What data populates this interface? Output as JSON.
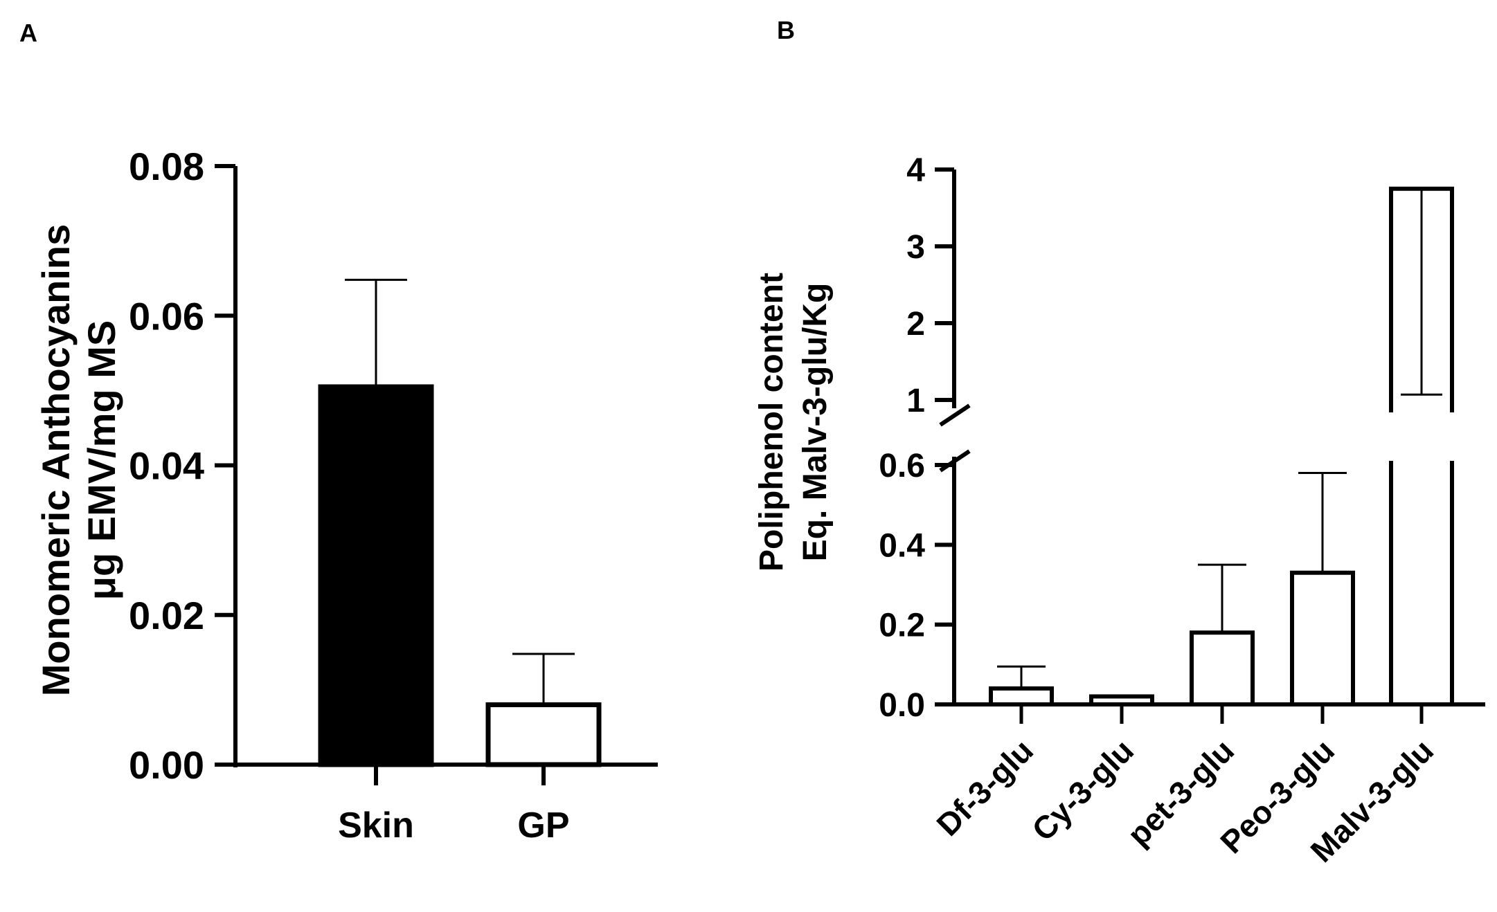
{
  "chart_data": [
    {
      "panel": "A",
      "type": "bar",
      "ylabel_lines": [
        "Monomeric Anthocyanins",
        "μg EMV/mg MS"
      ],
      "categories": [
        "Skin",
        "GP"
      ],
      "values": [
        0.0505,
        0.008
      ],
      "errors": [
        0.0143,
        0.0068
      ],
      "bar_fill": [
        "#000000",
        "#ffffff"
      ],
      "ylim": [
        0,
        0.08
      ],
      "yticks": [
        "0.00",
        "0.02",
        "0.04",
        "0.06",
        "0.08"
      ],
      "ytick_values": [
        0,
        0.02,
        0.04,
        0.06,
        0.08
      ],
      "grid": false,
      "legend": "none"
    },
    {
      "panel": "B",
      "type": "bar",
      "ylabel_lines": [
        "Poliphenol content",
        "Eq. Malv-3-glu/Kg"
      ],
      "categories": [
        "Df-3-glu",
        "Cy-3-glu",
        "pet-3-glu",
        "Peo-3-glu",
        "Malv-3-glu"
      ],
      "values": [
        0.04,
        0.02,
        0.18,
        0.33,
        3.75
      ],
      "errors": [
        0.055,
        0.0,
        0.17,
        0.25,
        2.68
      ],
      "bar_fill": [
        "#ffffff",
        "#ffffff",
        "#ffffff",
        "#ffffff",
        "#ffffff"
      ],
      "broken_axis": true,
      "lower_ylim": [
        0,
        0.6
      ],
      "upper_ylim": [
        1,
        4
      ],
      "lower_yticks": [
        "0.0",
        "0.2",
        "0.4",
        "0.6"
      ],
      "lower_ytick_values": [
        0,
        0.2,
        0.4,
        0.6
      ],
      "upper_yticks": [
        "1",
        "2",
        "3",
        "4"
      ],
      "upper_ytick_values": [
        1,
        2,
        3,
        4
      ],
      "grid": false,
      "legend": "none"
    }
  ]
}
